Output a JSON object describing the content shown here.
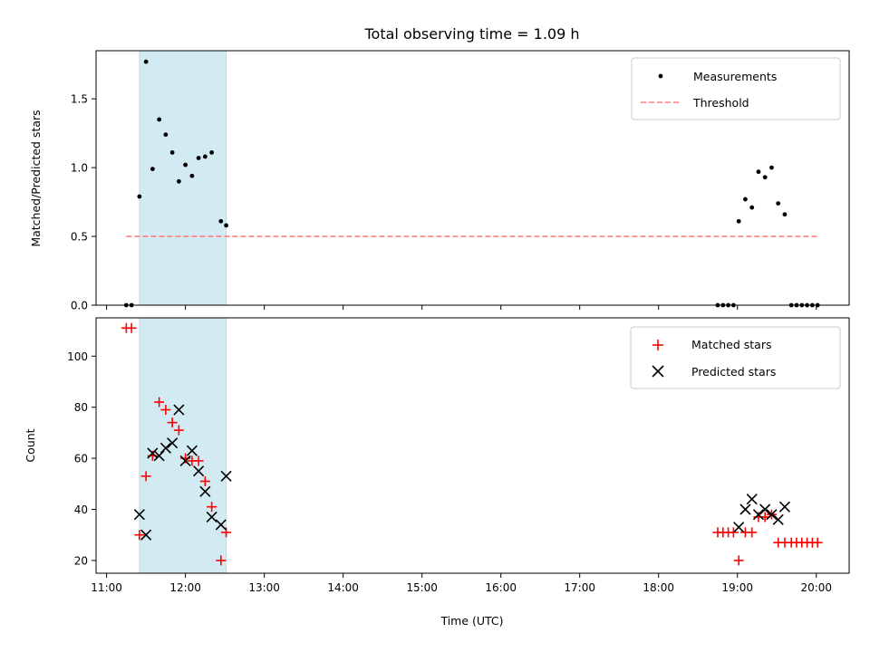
{
  "chart_data": {
    "type": "scatter",
    "title": "Total observing time = 1.09 h",
    "xlabel": "Time (UTC)",
    "x_ticks": [
      "11:00",
      "12:00",
      "13:00",
      "14:00",
      "15:00",
      "16:00",
      "17:00",
      "18:00",
      "19:00",
      "20:00"
    ],
    "xlim": [
      "10:52",
      "20:25"
    ],
    "shaded_interval": [
      "11:25",
      "12:31"
    ],
    "shade_color": "#add8e6",
    "panels": [
      {
        "ylabel": "Matched/Predicted stars",
        "ylim": [
          0,
          1.85
        ],
        "y_ticks": [
          0.0,
          0.5,
          1.0,
          1.5
        ],
        "y_tick_labels": [
          "0.0",
          "0.5",
          "1.0",
          "1.5"
        ],
        "legend": [
          "Measurements",
          "Threshold"
        ],
        "legend_position": "top-right",
        "series": [
          {
            "name": "Measurements",
            "marker": "dot",
            "color": "#000000",
            "points": [
              [
                "11:15",
                0.0
              ],
              [
                "11:19",
                0.0
              ],
              [
                "11:25",
                0.79
              ],
              [
                "11:30",
                1.77
              ],
              [
                "11:35",
                0.99
              ],
              [
                "11:40",
                1.35
              ],
              [
                "11:45",
                1.24
              ],
              [
                "11:50",
                1.11
              ],
              [
                "11:55",
                0.9
              ],
              [
                "12:00",
                1.02
              ],
              [
                "12:05",
                0.94
              ],
              [
                "12:10",
                1.07
              ],
              [
                "12:15",
                1.08
              ],
              [
                "12:20",
                1.11
              ],
              [
                "12:27",
                0.61
              ],
              [
                "12:31",
                0.58
              ],
              [
                "18:45",
                0.0
              ],
              [
                "18:49",
                0.0
              ],
              [
                "18:53",
                0.0
              ],
              [
                "18:57",
                0.0
              ],
              [
                "19:01",
                0.61
              ],
              [
                "19:06",
                0.77
              ],
              [
                "19:11",
                0.71
              ],
              [
                "19:16",
                0.97
              ],
              [
                "19:21",
                0.93
              ],
              [
                "19:26",
                1.0
              ],
              [
                "19:31",
                0.74
              ],
              [
                "19:36",
                0.66
              ],
              [
                "19:41",
                0.0
              ],
              [
                "19:45",
                0.0
              ],
              [
                "19:49",
                0.0
              ],
              [
                "19:53",
                0.0
              ],
              [
                "19:57",
                0.0
              ],
              [
                "20:01",
                0.0
              ]
            ]
          },
          {
            "name": "Threshold",
            "style": "dashed-line",
            "color": "#ff7f7f",
            "from": [
              "11:15",
              0.5
            ],
            "to": [
              "20:01",
              0.5
            ]
          }
        ]
      },
      {
        "ylabel": "Count",
        "ylim": [
          15,
          115
        ],
        "y_ticks": [
          20,
          40,
          60,
          80,
          100
        ],
        "y_tick_labels": [
          "20",
          "40",
          "60",
          "80",
          "100"
        ],
        "legend": [
          "Matched stars",
          "Predicted stars"
        ],
        "legend_position": "top-right",
        "series": [
          {
            "name": "Matched stars",
            "marker": "plus",
            "color": "#ff0000",
            "points": [
              [
                "11:15",
                111
              ],
              [
                "11:19",
                111
              ],
              [
                "11:25",
                30
              ],
              [
                "11:30",
                53
              ],
              [
                "11:35",
                61
              ],
              [
                "11:40",
                82
              ],
              [
                "11:45",
                79
              ],
              [
                "11:50",
                74
              ],
              [
                "11:55",
                71
              ],
              [
                "12:00",
                60
              ],
              [
                "12:05",
                59
              ],
              [
                "12:10",
                59
              ],
              [
                "12:15",
                51
              ],
              [
                "12:20",
                41
              ],
              [
                "12:27",
                20
              ],
              [
                "12:31",
                31
              ],
              [
                "18:45",
                31
              ],
              [
                "18:49",
                31
              ],
              [
                "18:53",
                31
              ],
              [
                "18:57",
                31
              ],
              [
                "19:01",
                20
              ],
              [
                "19:06",
                31
              ],
              [
                "19:11",
                31
              ],
              [
                "19:16",
                37
              ],
              [
                "19:21",
                37
              ],
              [
                "19:26",
                38
              ],
              [
                "19:31",
                27
              ],
              [
                "19:36",
                27
              ],
              [
                "19:41",
                27
              ],
              [
                "19:45",
                27
              ],
              [
                "19:49",
                27
              ],
              [
                "19:53",
                27
              ],
              [
                "19:57",
                27
              ],
              [
                "20:01",
                27
              ]
            ]
          },
          {
            "name": "Predicted stars",
            "marker": "x",
            "color": "#000000",
            "points": [
              [
                "11:25",
                38
              ],
              [
                "11:30",
                30
              ],
              [
                "11:35",
                62
              ],
              [
                "11:40",
                61
              ],
              [
                "11:45",
                64
              ],
              [
                "11:50",
                66
              ],
              [
                "11:55",
                79
              ],
              [
                "12:00",
                59
              ],
              [
                "12:05",
                63
              ],
              [
                "12:10",
                55
              ],
              [
                "12:15",
                47
              ],
              [
                "12:20",
                37
              ],
              [
                "12:27",
                34
              ],
              [
                "12:31",
                53
              ],
              [
                "19:01",
                33
              ],
              [
                "19:06",
                40
              ],
              [
                "19:11",
                44
              ],
              [
                "19:16",
                38
              ],
              [
                "19:21",
                40
              ],
              [
                "19:26",
                38
              ],
              [
                "19:31",
                36
              ],
              [
                "19:36",
                41
              ]
            ]
          }
        ]
      }
    ]
  }
}
